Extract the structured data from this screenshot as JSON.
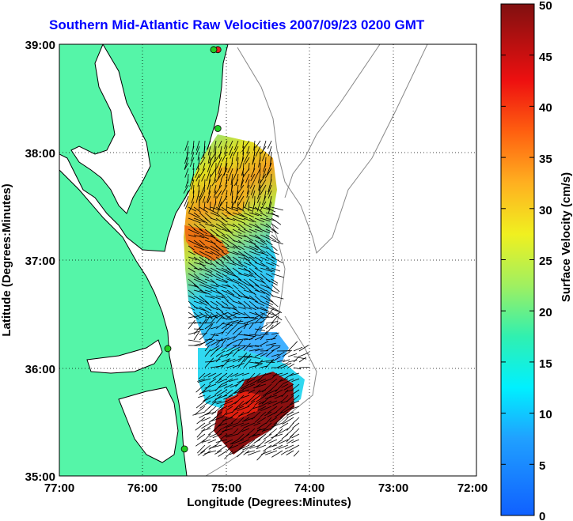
{
  "title": "Southern Mid-Atlantic Raw Velocities 2007/09/23 0200 GMT",
  "x_axis": {
    "label": "Longitude (Degrees:Minutes)",
    "ticks": [
      "77:00",
      "76:00",
      "75:00",
      "74:00",
      "73:00",
      "72:00"
    ]
  },
  "y_axis": {
    "label": "Latitude (Degrees:Minutes)",
    "ticks": [
      "39:00",
      "38:00",
      "37:00",
      "36:00",
      "35:00"
    ]
  },
  "colorbar": {
    "label": "Surface Velocity (cm/s)",
    "ticks": [
      "50",
      "45",
      "40",
      "35",
      "30",
      "25",
      "20",
      "15",
      "10",
      "5",
      "0"
    ],
    "min": 0,
    "max": 50
  },
  "map": {
    "lon_range": [
      -77,
      -72
    ],
    "lat_range": [
      35,
      39
    ],
    "grid": "dotted",
    "land_color": "#55f5a8",
    "stations_color": "#22cc22",
    "stations": [
      {
        "lon": -75.1,
        "lat": 38.95,
        "color": "#dd2222"
      },
      {
        "lon": -75.15,
        "lat": 38.95,
        "color": "#22cc22"
      },
      {
        "lon": -75.1,
        "lat": 38.22,
        "color": "#22cc22"
      },
      {
        "lon": -75.7,
        "lat": 36.18,
        "color": "#22cc22"
      },
      {
        "lon": -75.5,
        "lat": 35.25,
        "color": "#22cc22"
      }
    ]
  }
}
